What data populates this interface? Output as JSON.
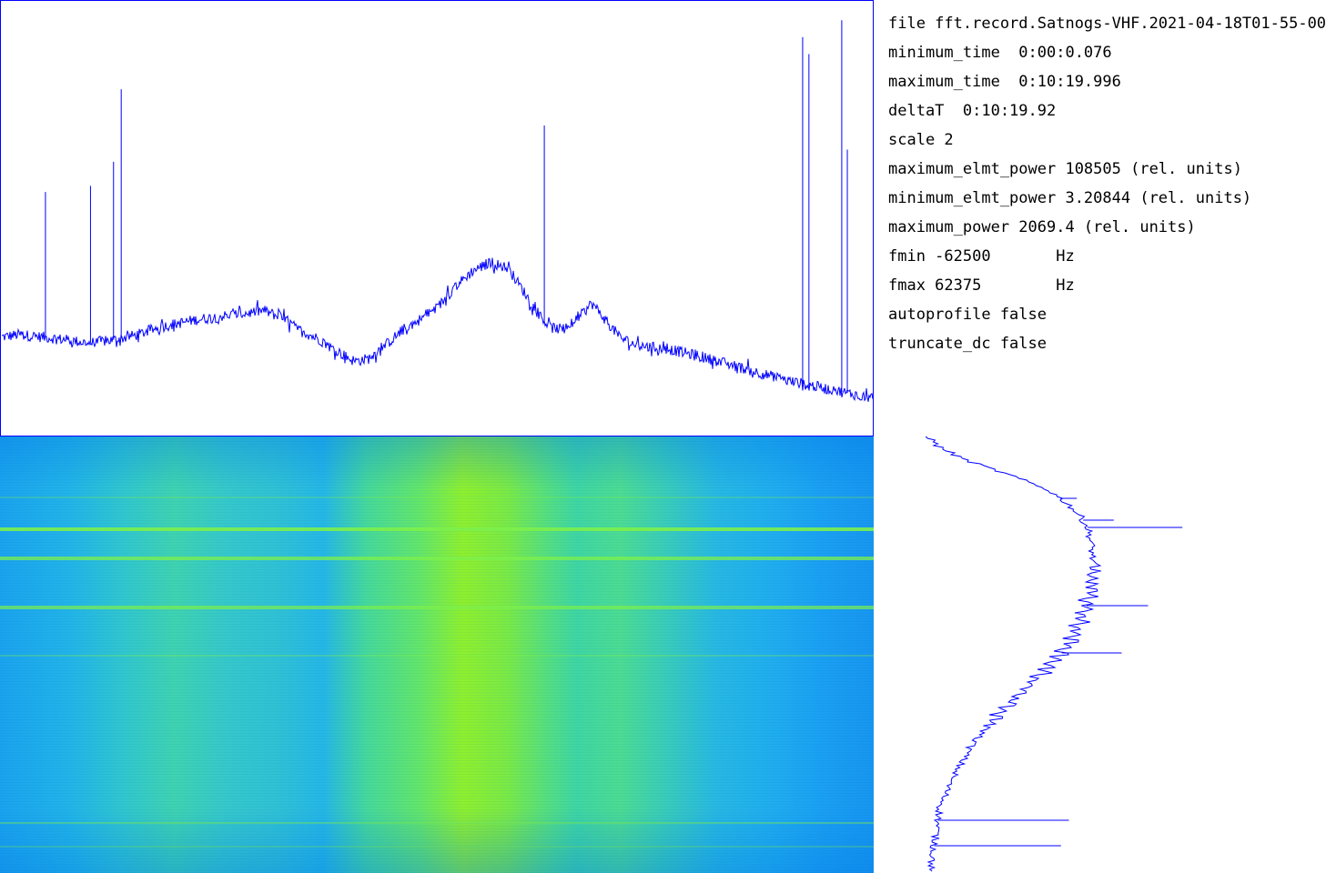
{
  "info": {
    "lines": [
      "file fft.record.Satnogs-VHF.2021-04-18T01-55-00",
      "minimum_time  0:00:0.076",
      "maximum_time  0:10:19.996",
      "deltaT  0:10:19.92",
      "scale 2",
      "maximum_elmt_power 108505 (rel. units)",
      "minimum_elmt_power 3.20844 (rel. units)",
      "maximum_power 2069.4 (rel. units)",
      "fmin -62500       Hz",
      "fmax 62375        Hz",
      "autoprofile false",
      "truncate_dc false"
    ]
  },
  "colors": {
    "trace": "#0000ff",
    "border": "#0000ff",
    "waterfall_low": "#1aa3ee",
    "waterfall_high": "#8ef02e",
    "waterfall_line": "#7cf04c"
  },
  "chart_data": [
    {
      "type": "line",
      "name": "frequency-spectrum",
      "x": [
        -62500,
        -60000,
        -55000,
        -50000,
        -46000,
        -43000,
        -40000,
        -35000,
        -30000,
        -27000,
        -25000,
        -22000,
        -20000,
        -17000,
        -15000,
        -12000,
        -10000,
        -7000,
        -5000,
        -2500,
        0,
        2500,
        5000,
        7500,
        10000,
        12000,
        14000,
        16000,
        18000,
        20000,
        22000,
        24000,
        26000,
        28000,
        30000,
        33000,
        36000,
        40000,
        45000,
        50000,
        55000,
        60000,
        62375
      ],
      "values": [
        0.8,
        0.82,
        0.79,
        0.75,
        0.78,
        0.82,
        0.88,
        0.94,
        0.98,
        1.0,
        1.02,
        0.95,
        0.86,
        0.78,
        0.7,
        0.6,
        0.62,
        0.76,
        0.86,
        0.95,
        1.05,
        1.22,
        1.35,
        1.42,
        1.37,
        1.2,
        1.02,
        0.88,
        0.86,
        0.95,
        1.08,
        0.94,
        0.8,
        0.74,
        0.72,
        0.7,
        0.66,
        0.6,
        0.52,
        0.44,
        0.38,
        0.32,
        0.3
      ],
      "spikes": [
        {
          "x": -56250,
          "value": 2.0
        },
        {
          "x": -49800,
          "value": 2.05
        },
        {
          "x": -46500,
          "value": 2.25
        },
        {
          "x": -45400,
          "value": 2.85
        },
        {
          "x": 15200,
          "value": 2.55
        },
        {
          "x": 52200,
          "value": 3.28
        },
        {
          "x": 53100,
          "value": 3.14
        },
        {
          "x": 57800,
          "value": 3.42
        },
        {
          "x": 58600,
          "value": 2.35
        }
      ],
      "xlim": [
        -62500,
        62375
      ]
    },
    {
      "type": "line",
      "name": "time-profile",
      "x": [
        0,
        10,
        25,
        45,
        60,
        75,
        90,
        100,
        110,
        130,
        150,
        175,
        200,
        230,
        260,
        300,
        340,
        380,
        410,
        430,
        450,
        470,
        480
      ],
      "values": [
        0.02,
        0.05,
        0.15,
        0.35,
        0.48,
        0.55,
        0.6,
        0.62,
        0.63,
        0.64,
        0.64,
        0.63,
        0.6,
        0.55,
        0.45,
        0.3,
        0.18,
        0.1,
        0.06,
        0.05,
        0.04,
        0.03,
        0.02
      ],
      "spikes": [
        {
          "x": 100,
          "value": 0.98
        },
        {
          "x": 92,
          "value": 0.72
        },
        {
          "x": 68,
          "value": 0.58
        },
        {
          "x": 186,
          "value": 0.85
        },
        {
          "x": 238,
          "value": 0.75
        },
        {
          "x": 422,
          "value": 0.55
        },
        {
          "x": 450,
          "value": 0.52
        }
      ],
      "xlim": [
        0,
        480
      ]
    }
  ],
  "waterfall": {
    "bright_lines": [
      {
        "y": 66,
        "strength": 0.25
      },
      {
        "y": 100,
        "strength": 0.9
      },
      {
        "y": 132,
        "strength": 0.75
      },
      {
        "y": 186,
        "strength": 0.7
      },
      {
        "y": 240,
        "strength": 0.3
      },
      {
        "y": 424,
        "strength": 0.45
      },
      {
        "y": 450,
        "strength": 0.35
      }
    ]
  }
}
